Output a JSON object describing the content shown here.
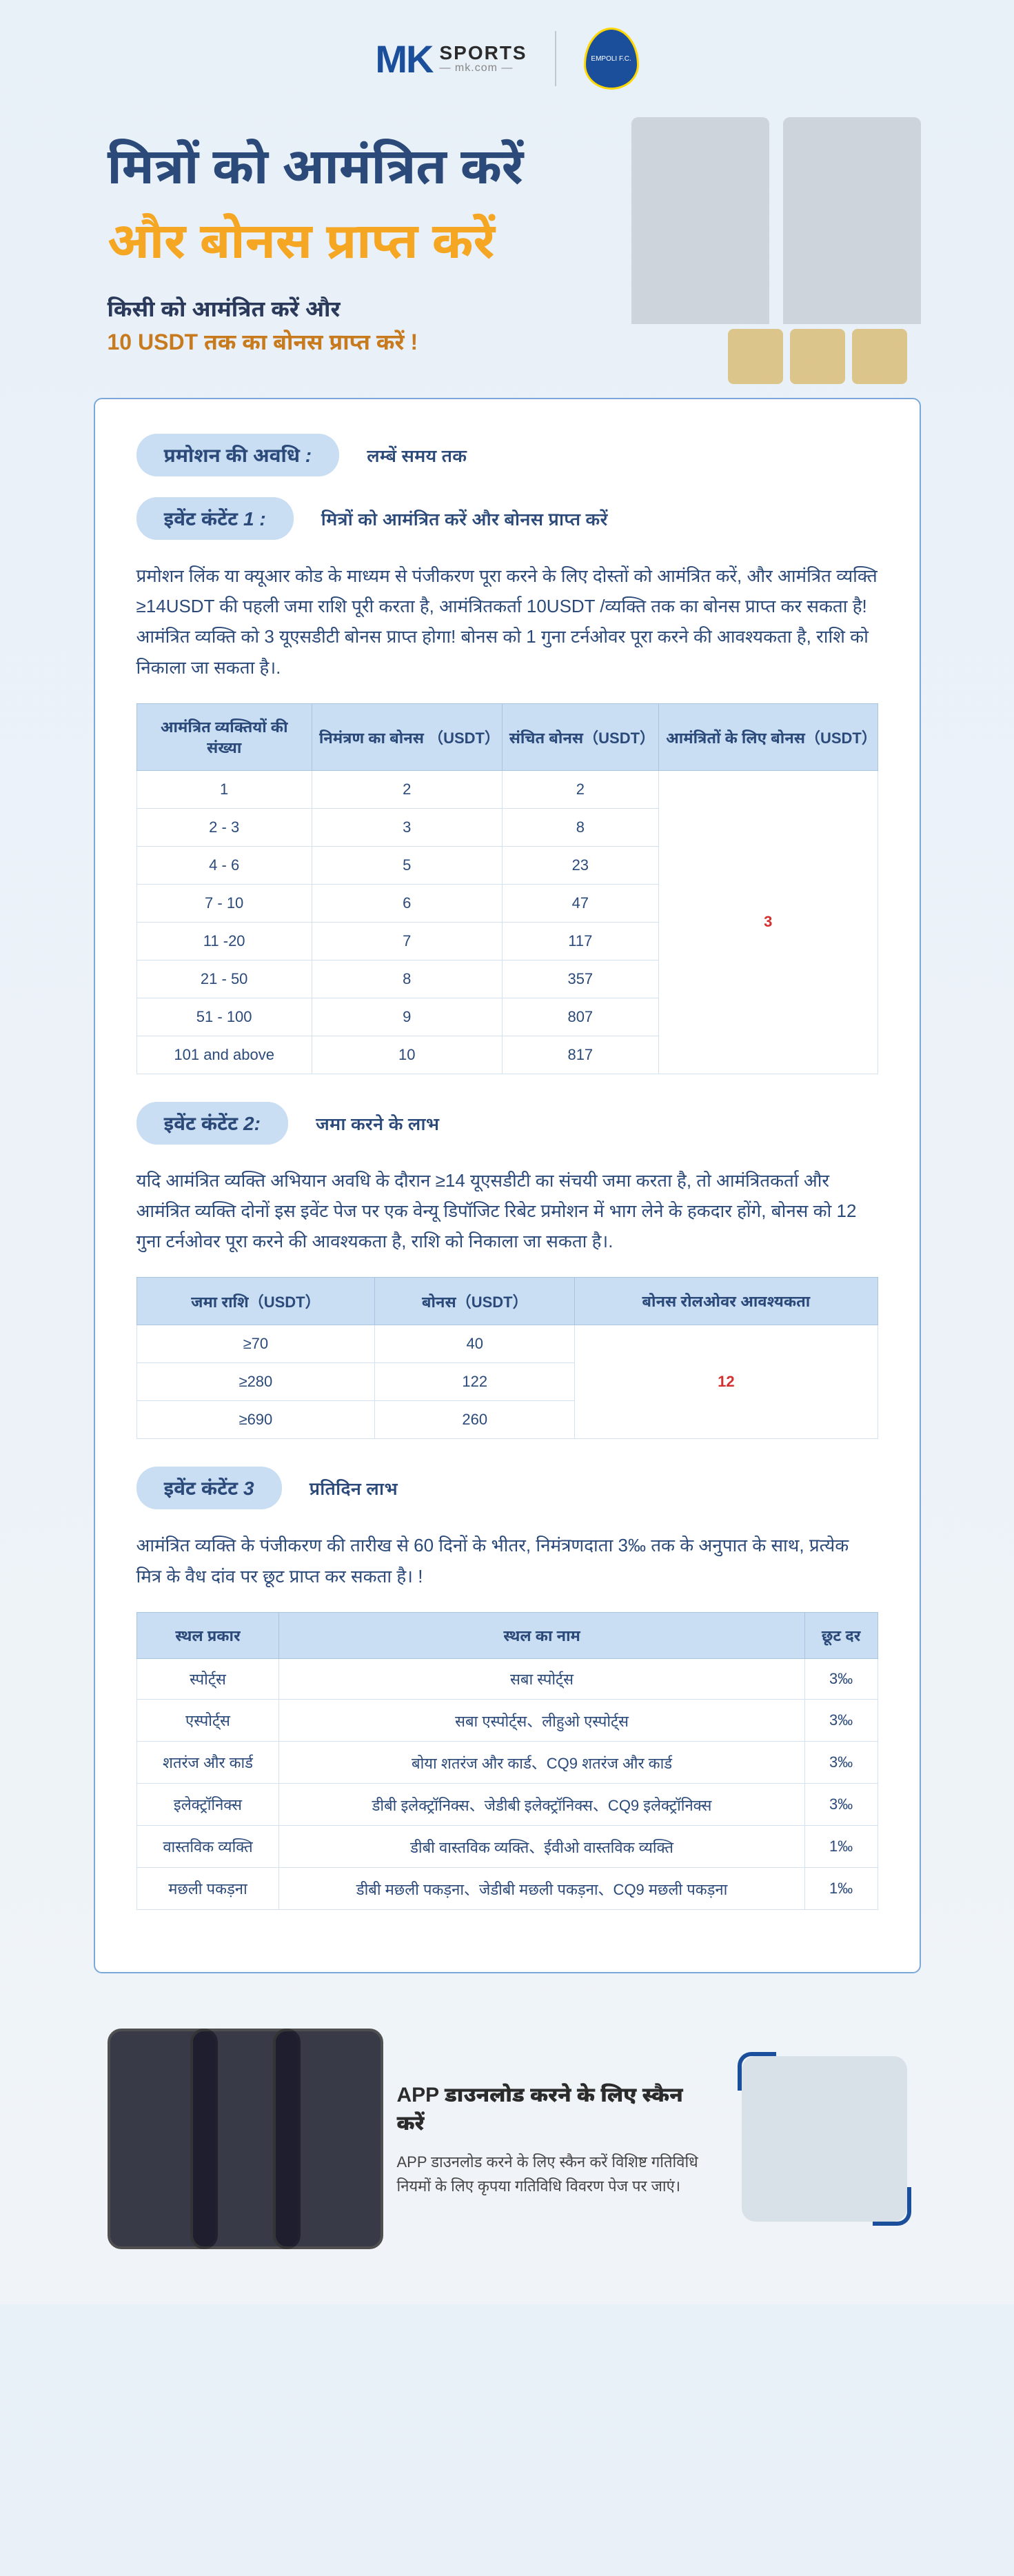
{
  "header": {
    "logo_mk": "MK",
    "logo_sports": "SPORTS",
    "logo_sub": "— mk.com —",
    "badge_text": "EMPOLI F.C."
  },
  "hero": {
    "title_1": "मित्रों को आमंत्रित करें",
    "title_2": "और बोनस प्राप्त करें",
    "sub_1": "किसी को आमंत्रित करें और",
    "sub_2": "10 USDT तक का बोनस प्राप्त करें !"
  },
  "sections": {
    "duration": {
      "label": "प्रमोशन की अवधि :",
      "value": "लम्बें समय तक"
    },
    "event1": {
      "label": "इवेंट कंटेंट 1 :",
      "value": "मित्रों को आमंत्रित करें और बोनस प्राप्त करें",
      "desc": "प्रमोशन लिंक या क्यूआर कोड के माध्यम से पंजीकरण पूरा करने के लिए दोस्तों को आमंत्रित करें, और आमंत्रित व्यक्ति ≥14USDT की पहली जमा राशि पूरी करता है, आमंत्रितकर्ता 10USDT /व्यक्ति तक का बोनस प्राप्त कर सकता है! आमंत्रित व्यक्ति को 3 यूएसडीटी बोनस प्राप्त होगा! बोनस को 1 गुना टर्नओवर पूरा करने की आवश्यकता है, राशि को निकाला जा सकता है।."
    },
    "event2": {
      "label": "इवेंट कंटेंट 2:",
      "value": "जमा करने के लाभ",
      "desc": "यदि आमंत्रित व्यक्ति अभियान अवधि के दौरान ≥14 यूएसडीटी का संचयी जमा करता है, तो आमंत्रितकर्ता और आमंत्रित व्यक्ति दोनों इस इवेंट पेज पर एक वेन्यू डिपॉजिट रिबेट प्रमोशन में भाग लेने के हकदार होंगे, बोनस को 12 गुना टर्नओवर पूरा करने की आवश्यकता है, राशि को निकाला जा सकता है।."
    },
    "event3": {
      "label": "इवेंट कंटेंट 3",
      "value": "प्रतिदिन लाभ",
      "desc": "आमंत्रित व्यक्ति के पंजीकरण की तारीख से 60 दिनों के भीतर, निमंत्रणदाता 3‰ तक के अनुपात के साथ, प्रत्येक मित्र के वैध दांव पर छूट प्राप्त कर सकता है। !"
    }
  },
  "table1": {
    "headers": [
      "आमंत्रित व्यक्तियों की संख्या",
      "निमंत्रण का बोनस （USDT）",
      "संचित बोनस（USDT）",
      "आमंत्रितों के लिए बोनस（USDT）"
    ],
    "rows": [
      [
        "1",
        "2",
        "2"
      ],
      [
        "2 - 3",
        "3",
        "8"
      ],
      [
        "4 - 6",
        "5",
        "23"
      ],
      [
        "7 - 10",
        "6",
        "47"
      ],
      [
        "11 -20",
        "7",
        "117"
      ],
      [
        "21 - 50",
        "8",
        "357"
      ],
      [
        "51 - 100",
        "9",
        "807"
      ],
      [
        "101 and above",
        "10",
        "817"
      ]
    ],
    "merged_last": "3"
  },
  "table2": {
    "headers": [
      "जमा राशि（USDT）",
      "बोनस（USDT）",
      "बोनस रोलओवर आवश्यकता"
    ],
    "rows": [
      [
        "≥70",
        "40"
      ],
      [
        "≥280",
        "122"
      ],
      [
        "≥690",
        "260"
      ]
    ],
    "merged_last": "12"
  },
  "table3": {
    "headers": [
      "स्थल प्रकार",
      "स्थल का नाम",
      "छूट दर"
    ],
    "rows": [
      [
        "स्पोर्ट्स",
        "सबा स्पोर्ट्स",
        "3‰"
      ],
      [
        "एस्पोर्ट्स",
        "सबा एस्पोर्ट्स、लीहुओ एस्पोर्ट्स",
        "3‰"
      ],
      [
        "शतरंज और कार्ड",
        "बोया शतरंज और कार्ड、CQ9 शतरंज और कार्ड",
        "3‰"
      ],
      [
        "इलेक्ट्रॉनिक्स",
        "डीबी इलेक्ट्रॉनिक्स、जेडीबी इलेक्ट्रॉनिक्स、CQ9 इलेक्ट्रॉनिक्स",
        "3‰"
      ],
      [
        "वास्तविक व्यक्ति",
        "डीबी वास्तविक व्यक्ति、ईवीओ वास्तविक व्यक्ति",
        "1‰"
      ],
      [
        "मछली पकड़ना",
        "डीबी मछली पकड़ना、जेडीबी मछली पकड़ना、CQ9 मछली पकड़ना",
        "1‰"
      ]
    ]
  },
  "footer": {
    "title": "APP  डाउनलोड करने के लिए स्कैन करें",
    "desc": "APP  डाउनलोड करने के लिए स्कैन करें विशिष्ट गतिविधि नियमों के लिए कृपया गतिविधि विवरण पेज पर जाएं।"
  }
}
